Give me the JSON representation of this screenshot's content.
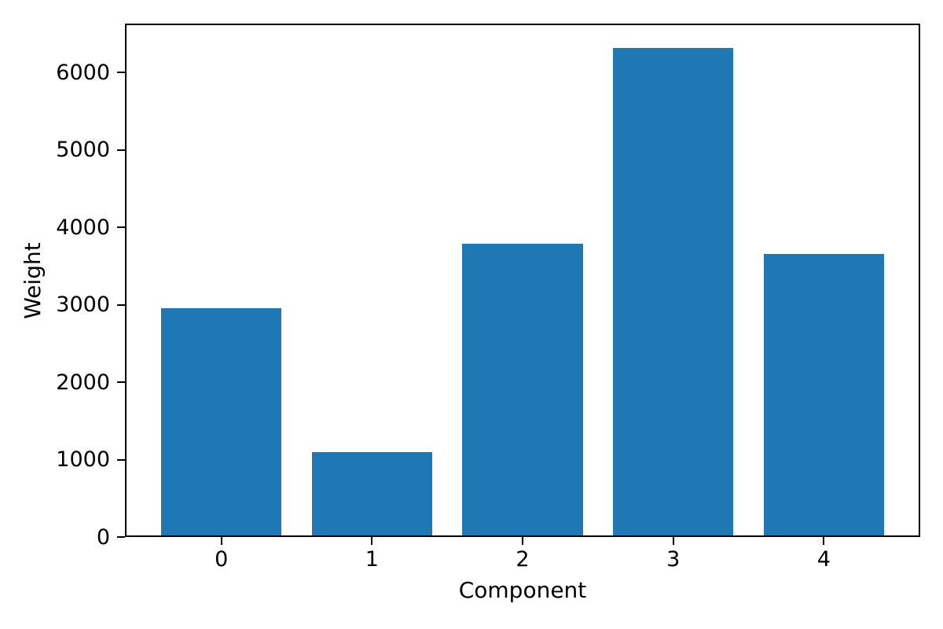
{
  "chart_data": {
    "type": "bar",
    "title": "",
    "xlabel": "Component",
    "ylabel": "Weight",
    "categories": [
      "0",
      "1",
      "2",
      "3",
      "4"
    ],
    "values": [
      2950,
      1100,
      3790,
      6315,
      3655
    ],
    "yticks": [
      0,
      1000,
      2000,
      3000,
      4000,
      5000,
      6000
    ],
    "ylim": [
      0,
      6630
    ],
    "bar_color": "#1f77b4",
    "axis_color": "#000000",
    "background_color": "#ffffff",
    "bar_width_fraction": 0.8,
    "x_margin_units": 0.24,
    "grid": false,
    "legend": "none"
  }
}
